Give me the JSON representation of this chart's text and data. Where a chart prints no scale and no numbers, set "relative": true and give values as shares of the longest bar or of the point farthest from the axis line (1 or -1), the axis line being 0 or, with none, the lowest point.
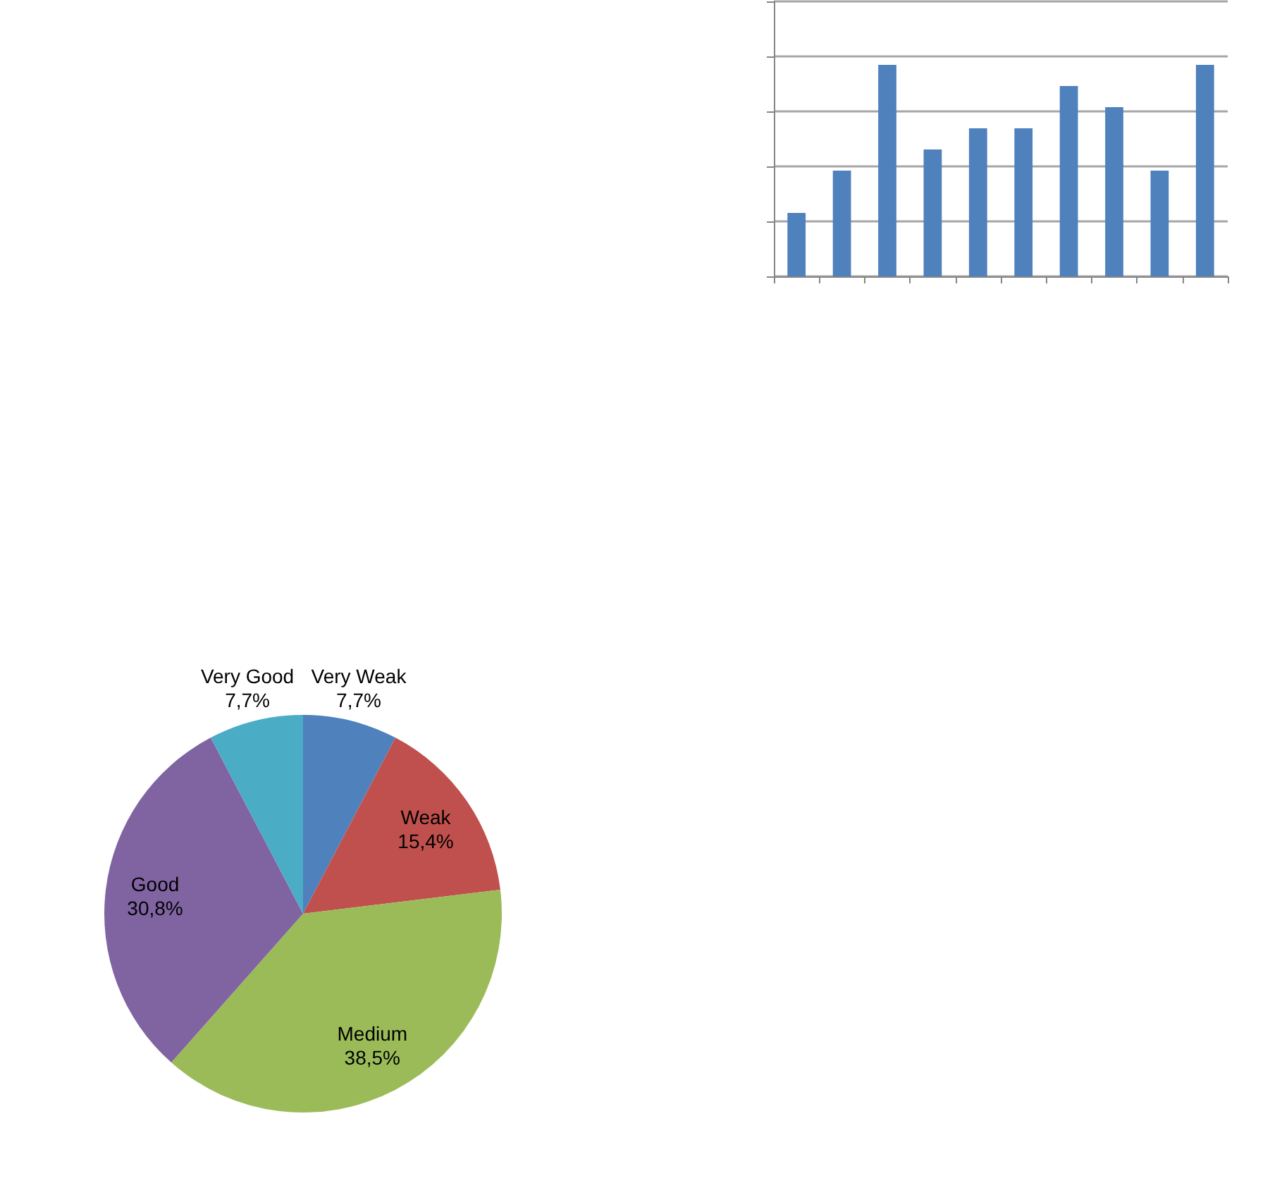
{
  "chart_data": [
    {
      "type": "bar",
      "categories": [
        null,
        null,
        null,
        null,
        null,
        null,
        null,
        null,
        null,
        null
      ],
      "values": [
        0.3,
        0.5,
        1,
        0.6,
        0.7,
        0.7,
        0.9,
        0.8,
        0.5,
        1
      ],
      "color": "#4f81bd",
      "relative": true,
      "grid": "y"
    },
    {
      "type": "pie",
      "categories": [
        "Very Weak",
        "Weak",
        "Medium",
        "Good",
        "Very Good"
      ],
      "values": [
        7.7,
        15.4,
        38.5,
        30.8,
        7.7
      ],
      "colors": [
        "#4f81bd",
        "#c0504d",
        "#9bbb59",
        "#8064a2",
        "#4bacc6"
      ],
      "value_labels": [
        "7,7%",
        "15,4%",
        "38,5%",
        "30,8%",
        "7,7%"
      ]
    }
  ]
}
